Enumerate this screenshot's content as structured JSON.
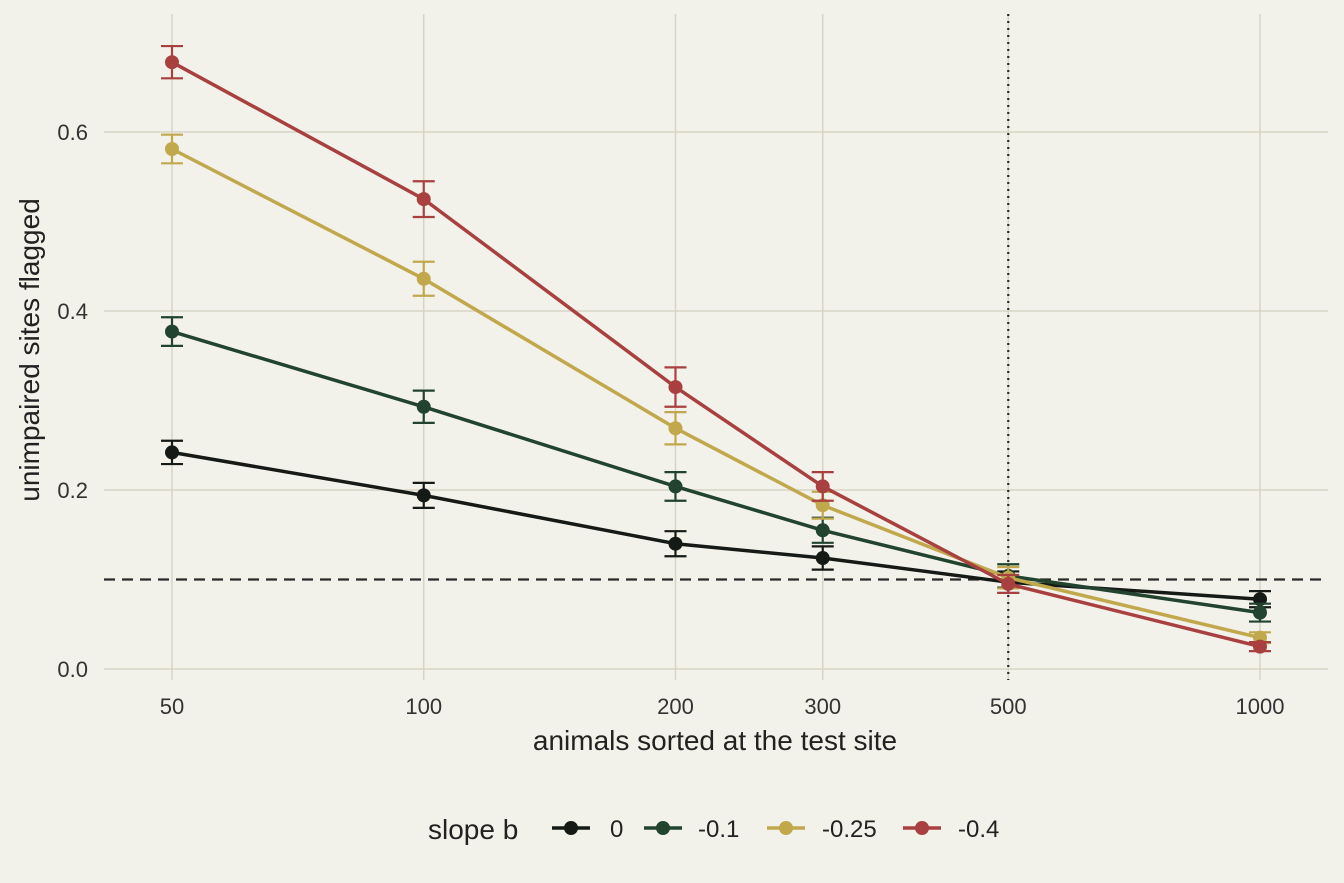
{
  "chart_data": {
    "type": "line",
    "title": "",
    "xlabel": "animals sorted at the test site",
    "ylabel": "unimpaired sites flagged",
    "x_scale": "log",
    "x": [
      50,
      100,
      200,
      300,
      500,
      1000
    ],
    "x_tick_labels": [
      "50",
      "100",
      "200",
      "300",
      "500",
      "1000"
    ],
    "y_ticks": [
      0.0,
      0.2,
      0.4,
      0.6
    ],
    "y_tick_labels": [
      "0.0",
      "0.2",
      "0.4",
      "0.6"
    ],
    "ylim": [
      -0.01,
      0.7
    ],
    "grid": true,
    "legend_title": "slope b",
    "legend_position": "bottom",
    "reference_lines": [
      {
        "orientation": "horizontal",
        "value": 0.1,
        "style": "dashed"
      },
      {
        "orientation": "vertical",
        "value": 500,
        "style": "dotted"
      }
    ],
    "series": [
      {
        "name": "0",
        "color": "#151a16",
        "values": [
          0.242,
          0.194,
          0.14,
          0.124,
          0.097,
          0.078
        ],
        "errors": [
          0.013,
          0.014,
          0.014,
          0.013,
          0.012,
          0.009
        ]
      },
      {
        "name": "-0.1",
        "color": "#22442f",
        "values": [
          0.377,
          0.293,
          0.204,
          0.155,
          0.104,
          0.063
        ],
        "errors": [
          0.016,
          0.018,
          0.016,
          0.014,
          0.013,
          0.01
        ]
      },
      {
        "name": "-0.25",
        "color": "#c1a84c",
        "values": [
          0.581,
          0.436,
          0.269,
          0.183,
          0.102,
          0.035
        ],
        "errors": [
          0.016,
          0.019,
          0.018,
          0.015,
          0.012,
          0.006
        ]
      },
      {
        "name": "-0.4",
        "color": "#a94040",
        "values": [
          0.678,
          0.525,
          0.315,
          0.204,
          0.095,
          0.025
        ],
        "errors": [
          0.018,
          0.02,
          0.022,
          0.016,
          0.01,
          0.005
        ]
      }
    ]
  }
}
